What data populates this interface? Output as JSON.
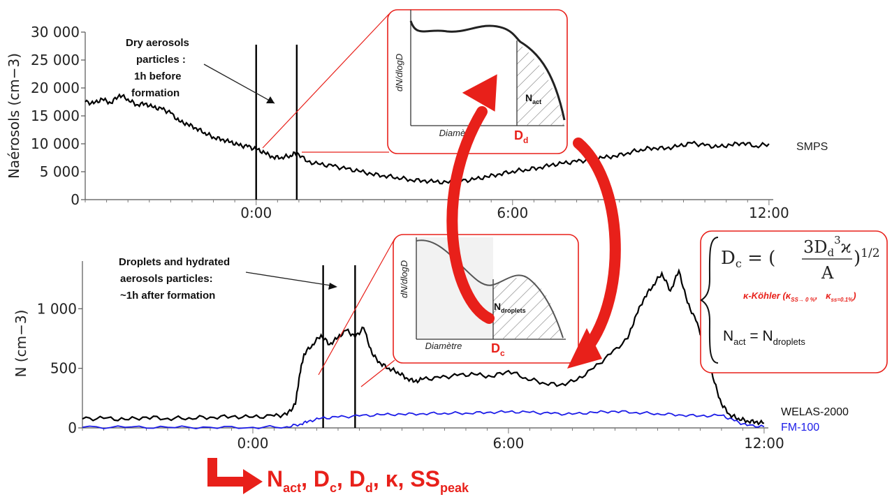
{
  "chart_data": [
    {
      "type": "line",
      "id": "top",
      "ylabel": "Naérosols (cm−3)",
      "yticks": [
        0,
        5000,
        10000,
        15000,
        20000,
        25000,
        30000
      ],
      "ytick_labels": [
        "0",
        "5 000",
        "10 000",
        "15 000",
        "20 000",
        "25 000",
        "30 000"
      ],
      "ylim": [
        0,
        30000
      ],
      "xlim": [
        -4.0,
        12.1
      ],
      "xticks": [
        0,
        6,
        12
      ],
      "xtick_labels": [
        "0:00",
        "6:00",
        "12:00"
      ],
      "annotation": "Dry aerosols particles : 1h before formation",
      "markers_x": [
        0.0,
        0.95
      ],
      "series": [
        {
          "name": "SMPS",
          "color": "#000000",
          "x": [
            -4.0,
            -3.8,
            -3.6,
            -3.4,
            -3.2,
            -3.0,
            -2.8,
            -2.6,
            -2.4,
            -2.2,
            -2.0,
            -1.8,
            -1.6,
            -1.4,
            -1.2,
            -1.0,
            -0.8,
            -0.6,
            -0.4,
            -0.2,
            0.0,
            0.2,
            0.4,
            0.6,
            0.8,
            0.95,
            1.2,
            1.5,
            1.8,
            2.1,
            2.4,
            2.7,
            3.0,
            3.3,
            3.6,
            3.9,
            4.2,
            4.5,
            4.8,
            5.1,
            5.4,
            5.7,
            6.0,
            6.3,
            6.6,
            6.9,
            7.2,
            7.5,
            7.8,
            8.1,
            8.4,
            8.7,
            9.0,
            9.3,
            9.6,
            9.9,
            10.2,
            10.5,
            10.8,
            11.1,
            11.4,
            11.7,
            12.0
          ],
          "y": [
            17500,
            17200,
            18000,
            17300,
            18800,
            18000,
            17000,
            17200,
            16500,
            16200,
            15500,
            14000,
            13500,
            12800,
            12000,
            11200,
            10800,
            10300,
            9700,
            9500,
            9000,
            8400,
            7600,
            7600,
            7900,
            8500,
            6800,
            6300,
            6000,
            5500,
            5100,
            4600,
            4300,
            4000,
            3600,
            3400,
            3200,
            3000,
            3300,
            3600,
            4100,
            4600,
            5100,
            5400,
            5700,
            6200,
            6500,
            6800,
            7100,
            7500,
            7800,
            8400,
            9000,
            9300,
            9200,
            9600,
            10100,
            9700,
            9400,
            9800,
            10200,
            9600,
            10000
          ]
        }
      ]
    },
    {
      "type": "line",
      "id": "bottom",
      "ylabel": "N (cm−3)",
      "yticks": [
        0,
        500,
        1000
      ],
      "ytick_labels": [
        "0",
        "500",
        "1 000"
      ],
      "ylim": [
        0,
        1400
      ],
      "xlim": [
        -4.0,
        12.1
      ],
      "xticks": [
        0,
        6,
        12
      ],
      "xtick_labels": [
        "0:00",
        "6:00",
        "12:00"
      ],
      "annotation": "Droplets and hydrated aerosols particles: ~1h after formation",
      "markers_x": [
        1.65,
        2.4
      ],
      "series": [
        {
          "name": "WELAS-2000",
          "color": "#000000",
          "x": [
            -4.0,
            -3.5,
            -3.0,
            -2.5,
            -2.0,
            -1.5,
            -1.0,
            -0.5,
            0.0,
            0.5,
            0.8,
            1.0,
            1.1,
            1.2,
            1.4,
            1.6,
            1.8,
            2.0,
            2.2,
            2.4,
            2.6,
            2.8,
            3.0,
            3.2,
            3.4,
            3.6,
            3.8,
            4.0,
            4.4,
            4.8,
            5.2,
            5.6,
            6.0,
            6.4,
            6.8,
            7.2,
            7.6,
            8.0,
            8.4,
            8.8,
            9.0,
            9.2,
            9.4,
            9.6,
            9.8,
            10.0,
            10.2,
            10.4,
            10.6,
            10.8,
            11.0,
            11.2,
            11.4,
            11.6,
            11.8,
            12.0
          ],
          "y": [
            75,
            80,
            70,
            90,
            80,
            85,
            90,
            95,
            90,
            100,
            110,
            200,
            450,
            620,
            700,
            780,
            700,
            760,
            820,
            760,
            840,
            620,
            540,
            500,
            470,
            420,
            390,
            410,
            420,
            440,
            450,
            430,
            480,
            420,
            380,
            360,
            400,
            500,
            620,
            750,
            950,
            1100,
            1200,
            1300,
            1150,
            1320,
            1050,
            900,
            700,
            420,
            200,
            110,
            80,
            60,
            50,
            40
          ]
        },
        {
          "name": "FM-100",
          "color": "#1c1ce8",
          "x": [
            -4.0,
            -3.0,
            -2.0,
            -1.0,
            0.0,
            0.8,
            1.1,
            1.3,
            1.6,
            2.0,
            2.5,
            3.0,
            3.5,
            4.0,
            4.5,
            5.0,
            5.5,
            6.0,
            6.5,
            7.0,
            7.5,
            8.0,
            8.5,
            9.0,
            9.5,
            10.0,
            10.5,
            11.0,
            11.3,
            11.6,
            12.0
          ],
          "y": [
            5,
            5,
            5,
            5,
            5,
            10,
            30,
            55,
            80,
            90,
            100,
            110,
            115,
            120,
            125,
            125,
            130,
            135,
            130,
            120,
            115,
            130,
            140,
            130,
            120,
            110,
            100,
            105,
            60,
            20,
            10
          ]
        }
      ]
    }
  ],
  "insets": {
    "top": {
      "ylabel": "dN/dlogD",
      "xlabel": "Diamètre",
      "region_label_main": "N",
      "region_label_sub": "act",
      "cut_label_main": "D",
      "cut_label_sub": "d"
    },
    "bottom": {
      "ylabel": "dN/dlogD",
      "xlabel": "Diamètre",
      "region_label_main": "N",
      "region_label_sub": "droplets",
      "cut_label_main": "D",
      "cut_label_sub": "c"
    }
  },
  "equation": {
    "lhs": "D",
    "lhs_sub": "c",
    "eq": " = (",
    "num": "3D",
    "num_sub": "d",
    "num_sup": "3",
    "kappa": "ϰ",
    "den": "A",
    "close": ")",
    "exp": "1/2",
    "kohler": "κ-Köhler (κ",
    "k1_sub": "SS→ 0 %",
    "k2_main": "κ",
    "k2_sub": "ss=0.1%",
    "close_paren": ")",
    "line2_main": "N",
    "line2_sub": "act",
    "line2_eq": " = N",
    "line2_sub2": "droplets"
  },
  "outputs": {
    "parts": [
      {
        "main": "N",
        "sub": "act",
        "sep": ", "
      },
      {
        "main": "D",
        "sub": "c",
        "sep": ", "
      },
      {
        "main": "D",
        "sub": "d",
        "sep": ", "
      },
      {
        "main": "κ",
        "sub": "",
        "sep": ", "
      },
      {
        "main": "SS",
        "sub": "peak",
        "sep": ""
      }
    ]
  },
  "colors": {
    "accent": "#e8201a",
    "fm100": "#1c1ce8",
    "line": "#000000"
  }
}
